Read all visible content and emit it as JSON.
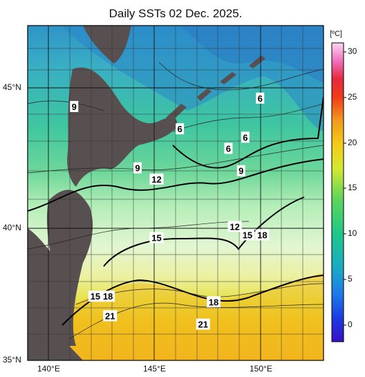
{
  "title": "Daily SSTs 02 Dec. 2025.",
  "map": {
    "lat_labels": [
      "45°N",
      "40°N",
      "35°N"
    ],
    "lon_labels": [
      "140°E",
      "145°E",
      "150°E"
    ],
    "lon_range": [
      139,
      153
    ],
    "lat_range": [
      35,
      47
    ],
    "contour_labels": [
      {
        "text": "9",
        "lon": 141.2,
        "lat": 44.1
      },
      {
        "text": "6",
        "lon": 146.2,
        "lat": 43.3
      },
      {
        "text": "6",
        "lon": 150.0,
        "lat": 44.4
      },
      {
        "text": "6",
        "lon": 149.3,
        "lat": 43.0
      },
      {
        "text": "6",
        "lon": 148.5,
        "lat": 42.6
      },
      {
        "text": "9",
        "lon": 144.2,
        "lat": 41.9
      },
      {
        "text": "9",
        "lon": 149.1,
        "lat": 41.8
      },
      {
        "text": "12",
        "lon": 145.1,
        "lat": 41.5
      },
      {
        "text": "12",
        "lon": 148.8,
        "lat": 39.8
      },
      {
        "text": "15",
        "lon": 149.4,
        "lat": 39.5
      },
      {
        "text": "18",
        "lon": 150.1,
        "lat": 39.5
      },
      {
        "text": "15",
        "lon": 145.1,
        "lat": 39.4
      },
      {
        "text": "15",
        "lon": 142.2,
        "lat": 37.3
      },
      {
        "text": "18",
        "lon": 142.8,
        "lat": 37.3
      },
      {
        "text": "18",
        "lon": 147.8,
        "lat": 37.1
      },
      {
        "text": "21",
        "lon": 142.9,
        "lat": 36.6
      },
      {
        "text": "21",
        "lon": 147.3,
        "lat": 36.3
      }
    ]
  },
  "colorbar": {
    "unit": "[ºC]",
    "ticks": [
      "30",
      "25",
      "20",
      "15",
      "10",
      "5",
      "0"
    ],
    "range": [
      -2,
      31
    ]
  }
}
